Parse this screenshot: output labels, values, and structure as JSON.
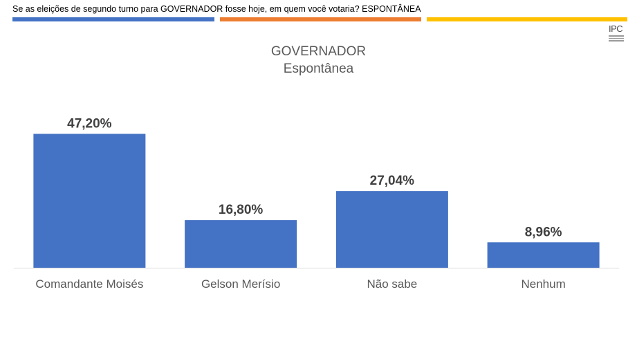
{
  "header": {
    "question": "Se as eleições de segundo turno para GOVERNADOR fosse hoje, em quem você votaria? ESPONTÂNEA"
  },
  "colors": {
    "stripe_blue": "#4472C4",
    "stripe_orange": "#ED7D31",
    "stripe_yellow": "#FFC000",
    "bar": "#4472C4",
    "axis": "#d9d9d9"
  },
  "logo": {
    "icon": "ipc-logo-icon",
    "text": "IPC"
  },
  "chart_data": {
    "type": "bar",
    "title": "GOVERNADOR",
    "subtitle": "Espontânea",
    "categories": [
      "Comandante Moisés",
      "Gelson Merísio",
      "Não sabe",
      "Nenhum"
    ],
    "values": [
      47.2,
      16.8,
      27.04,
      8.96
    ],
    "value_labels": [
      "47,20%",
      "16,80%",
      "27,04%",
      "8,96%"
    ],
    "ylim": [
      0,
      50
    ],
    "grid": false,
    "legend": "none"
  }
}
